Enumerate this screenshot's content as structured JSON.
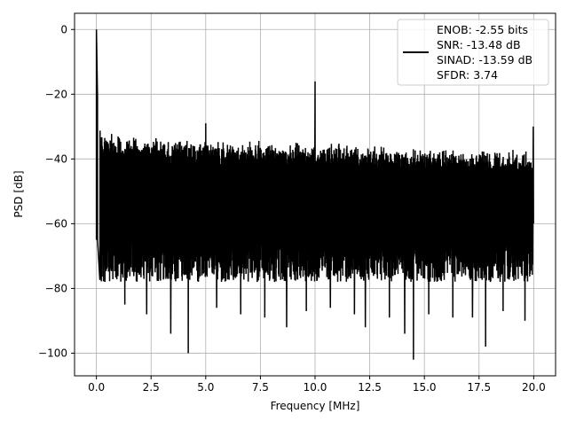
{
  "chart_data": {
    "type": "line",
    "title": "",
    "xlabel": "Frequency [MHz]",
    "ylabel": "PSD [dB]",
    "xlim": [
      -1.0,
      21.0
    ],
    "ylim": [
      -107.0,
      5.0
    ],
    "grid": true,
    "legend_position": "top-right",
    "x_ticks": [
      0,
      2.5,
      5,
      7.5,
      10,
      12.5,
      15,
      17.5,
      20
    ],
    "x_tick_labels": [
      "0.0",
      "2.5",
      "5.0",
      "7.5",
      "10.0",
      "12.5",
      "15.0",
      "17.5",
      "20.0"
    ],
    "y_ticks": [
      0,
      -20,
      -40,
      -60,
      -80,
      -100
    ],
    "y_tick_labels": [
      "0",
      "−20",
      "−40",
      "−60",
      "−80",
      "−100"
    ],
    "legend_lines": [
      "ENOB: -2.55 bits",
      "SNR: -13.48 dB",
      "SINAD: -13.59 dB",
      "SFDR: 3.74"
    ],
    "line_color": "#000000",
    "grid_color": "#b0b0b0",
    "series": [
      {
        "description": "noise floor envelope",
        "upper_envelope_x": [
          0.2,
          1,
          2,
          3,
          4,
          5,
          6,
          7,
          8,
          9,
          10,
          11,
          12,
          13,
          14,
          15,
          16,
          17,
          18,
          19,
          19.9
        ],
        "upper_envelope_y": [
          -31,
          -32.5,
          -33,
          -33,
          -33.5,
          -33.5,
          -34,
          -34,
          -34.5,
          -34.5,
          -35,
          -35,
          -35.5,
          -35.5,
          -36,
          -36,
          -36,
          -36.5,
          -36.5,
          -37,
          -37
        ],
        "typical_lower_y": -76,
        "deep_nulls_x": [
          0.05,
          1.3,
          2.3,
          3.4,
          4.2,
          5.5,
          6.6,
          7.7,
          8.7,
          9.6,
          10.7,
          11.8,
          12.3,
          13.4,
          14.1,
          14.5,
          15.2,
          16.3,
          17.2,
          17.8,
          18.6,
          19.6
        ],
        "deep_nulls_y": [
          -65,
          -85,
          -88,
          -94,
          -100,
          -86,
          -88,
          -89,
          -92,
          -87,
          -86,
          -88,
          -92,
          -89,
          -94,
          -102,
          -88,
          -89,
          -89,
          -98,
          -87,
          -90
        ]
      },
      {
        "description": "spurs",
        "x": [
          0.0,
          0.05,
          5.0,
          10.0,
          19.98
        ],
        "y": [
          0.0,
          -21.0,
          -29.0,
          -16.0,
          -30.0
        ]
      }
    ]
  }
}
